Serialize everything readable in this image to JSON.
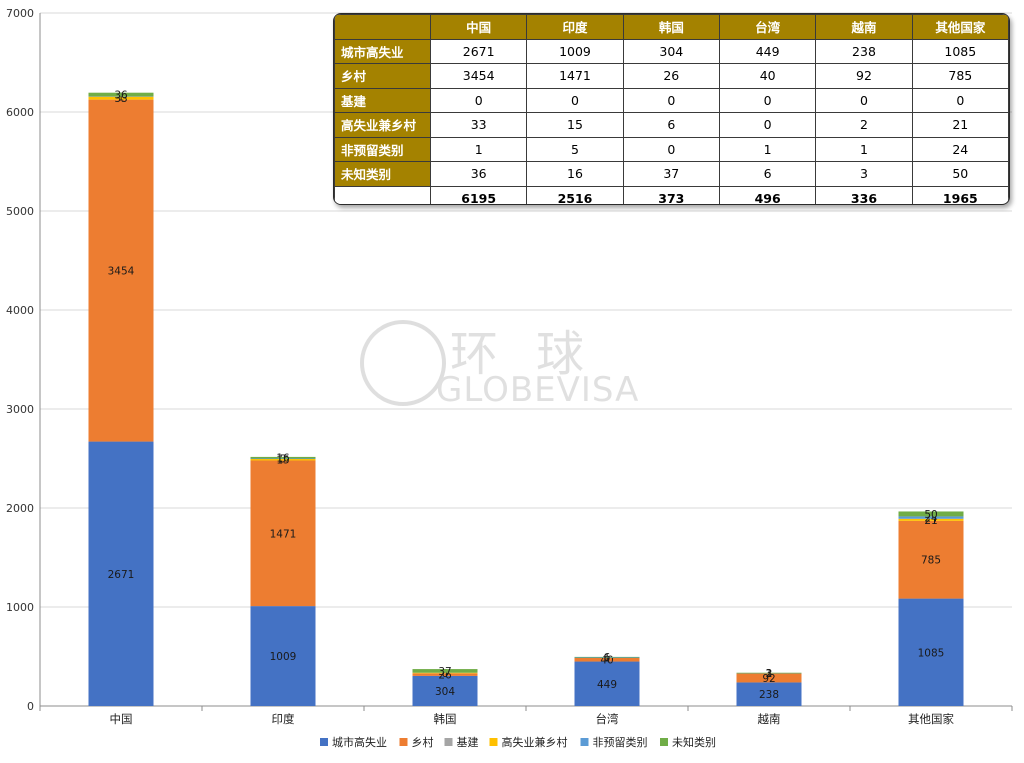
{
  "chart_data": {
    "type": "bar",
    "stacked": true,
    "categories": [
      "中国",
      "印度",
      "韩国",
      "台湾",
      "越南",
      "其他国家"
    ],
    "ylim": [
      0,
      7000
    ],
    "yticks": [
      0,
      1000,
      2000,
      3000,
      4000,
      5000,
      6000,
      7000
    ],
    "grid": true,
    "legend_position": "bottom",
    "series": [
      {
        "name": "城市高失业",
        "color": "#4472c4",
        "values": [
          2671,
          1009,
          304,
          449,
          238,
          1085
        ]
      },
      {
        "name": "乡村",
        "color": "#ed7d31",
        "values": [
          3454,
          1471,
          26,
          40,
          92,
          785
        ]
      },
      {
        "name": "基建",
        "color": "#a5a5a5",
        "values": [
          0,
          0,
          0,
          0,
          0,
          0
        ]
      },
      {
        "name": "高失业兼乡村",
        "color": "#ffc000",
        "values": [
          33,
          15,
          6,
          0,
          2,
          21
        ]
      },
      {
        "name": "非预留类别",
        "color": "#5b9bd5",
        "values": [
          1,
          5,
          0,
          1,
          1,
          24
        ]
      },
      {
        "name": "未知类别",
        "color": "#70ad47",
        "values": [
          36,
          16,
          37,
          6,
          3,
          50
        ]
      }
    ],
    "totals": [
      6195,
      2516,
      373,
      496,
      336,
      1965
    ]
  },
  "table": {
    "columns": [
      "中国",
      "印度",
      "韩国",
      "台湾",
      "越南",
      "其他国家"
    ],
    "rows": [
      {
        "label": "城市高失业",
        "values": [
          2671,
          1009,
          304,
          449,
          238,
          1085
        ]
      },
      {
        "label": "乡村",
        "values": [
          3454,
          1471,
          26,
          40,
          92,
          785
        ]
      },
      {
        "label": "基建",
        "values": [
          0,
          0,
          0,
          0,
          0,
          0
        ]
      },
      {
        "label": "高失业兼乡村",
        "values": [
          33,
          15,
          6,
          0,
          2,
          21
        ]
      },
      {
        "label": "非预留类别",
        "values": [
          1,
          5,
          0,
          1,
          1,
          24
        ]
      },
      {
        "label": "未知类别",
        "values": [
          36,
          16,
          37,
          6,
          3,
          50
        ]
      }
    ],
    "totals": [
      6195,
      2516,
      373,
      496,
      336,
      1965
    ]
  },
  "watermark": {
    "cn": "环球",
    "en": "GLOBEVISA"
  }
}
